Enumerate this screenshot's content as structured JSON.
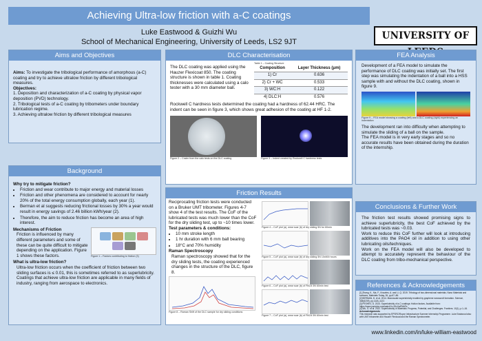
{
  "header": {
    "title": "Achieving Ultra-low friction with a-C coatings",
    "authors": "Luke Eastwood & Guizhi Wu",
    "affiliation": "School of Mechanical Engineering, University of Leeds, LS2 9JT",
    "logo_text": "UNIVERSITY OF LEEDS"
  },
  "aims": {
    "heading": "Aims and Objectives",
    "aims_label": "Aims:",
    "aims_text": "To investigate the tribological performance of amorphous (a-C) coating and try to achieve ultralow friction by different tribological measures.",
    "objectives_label": "Objectives:",
    "objectives": [
      "1. Deposition and characterization of a-C coating by physical vapor deposition (PVD) technology.",
      "2. Tribological tests of a-C coating by tribometers under boundary lubrication regime.",
      "3. Achieving ultralow friction by different tribological measures"
    ]
  },
  "background": {
    "heading": "Background",
    "why_heading": "Why try to mitigate friction?",
    "why_items": [
      "Friction and wear contribute to major energy and material losses",
      "Friction and other phenomena are considered to account for nearly 20% of the total energy consumption globally, each year (1).",
      "Berman et al suggests reducing frictional losses by 30% a year would result in energy savings of 2.46 billion kWh/year (2).",
      "Therefore, the aim to reduce friction has become an area of high interest."
    ],
    "mech_heading": "Mechanisms of Friction",
    "mech_text": "Friction is influenced by many different parameters and some of these can be quite difficult to mitigate depending on the application. Figure 1 shows these factors.",
    "fig1_caption": "Figure 1 – Factors contributing to friction (3)",
    "ultra_heading": "What is ultra-low friction?",
    "ultra_text1": "Ultra-low friction occurs when the coefficient of friction between two sliding surfaces is ≤ 0.01, this is sometimes referred to as superlubricity.",
    "ultra_text2": "Coatings that achieve ultra-low friction are applicable in many fields of industry, ranging from aerospace to electronics."
  },
  "dlc": {
    "heading": "DLC Characterisation",
    "text1": "The DLC coating was applied using the Hauzer Flexicoat 850. The coating structure is shown in table 1. Coating thicknesses were calculated using a calo tester with a 30 mm diameter ball.",
    "table_caption": "Table 1 – Coating Structure",
    "table_headers": [
      "Composition",
      "Layer Thickness (μm)"
    ],
    "table_rows": [
      [
        "1) Cr",
        "0.636"
      ],
      [
        "2) Cr + WC",
        "0.533"
      ],
      [
        "3) WC:H",
        "0.122"
      ],
      [
        "4) DLC:H",
        "0.576"
      ]
    ],
    "text2": "Rockwell C hardness tests determined the coating had a hardness of 62.44 HRC. The indent can be seen in figure 3, which shows great adhesion of the coating at HF 1-2.",
    "fig2_caption": "Figure 2 – Crater from the calo tests on the DLC coating",
    "fig3_caption": "Figure 3 – Indent created by Rockwell C hardness tests"
  },
  "fea": {
    "heading": "FEA Analysis",
    "text1": "Development of a FEA model to simulate the performance of DLC coating was initially set. The first step was simulating the indentation of a ball into a HSS sample with and without the DLC coating, shown in figure 9.",
    "fig9_caption": "Figure 9 – FEA model showing a coating (left) and a DLC coating (right) experiencing an indentation",
    "text2": "The development ran into difficulty when attempting to simulate the sliding of a ball on the sample.",
    "text3": "The FEA model is in very early stages and so no accurate results have been obtained during the duration of the internship."
  },
  "friction": {
    "heading": "Friction Results",
    "intro": "Reciprocating friction tests were conducted on a Bruker UMT tribometer. Figures 4-7 show 4 of the test results. The CoF of the lubricated tests was much lower than the CoF for the dry sliding test, up to ~10 times lower.",
    "params_heading": "Test parameters & conditions:",
    "params": [
      "10 mm stroke length",
      "1 hr duration with 6 mm ball bearing",
      "18°C and 70% humidity"
    ],
    "raman_heading": "Raman Spectroscopy",
    "raman_text": "Raman spectroscopy showed that for the dry sliding tests, the coating experienced changes in the structure of the DLC, figure 8.",
    "fig8_caption": "Figure 8 – Raman Shift of the DLC sample for dry sliding conditions",
    "fig_captions": [
      "Figure 4 – CoF plot (a), wear scar (b) of dry sliding 5N for 60min",
      "Figure 5 – CoF plot (a), wear scar (b) of dry sliding 5N 10x500 hours",
      "Figure 6 – CoF plot (a), wear scar (b) of PAO4 5N 60min test",
      "Figure 7 – CoF plot (a), wear scar (b) of PAO4 5N 60min test"
    ]
  },
  "conclusions": {
    "heading": "Conclusions & Further Work",
    "text1": "The friction test results showed promising signs to achieve superlubricity, the best CoF achieved by the lubricated tests was ~0.03.",
    "text2": "Work to reduce this CoF further will look at introducing additives into the PAO4 oil in addition to using other lubricating oils/techniques.",
    "text3": "Work on the FEA model will also be developed to attempt to accurately represent the behaviour of the DLC coating from tribo-mechanical perspective."
  },
  "references": {
    "heading": "References & Acknowledgements",
    "items": [
      "[1] Zhang, K., Ma, F., Knowles, A. and Li, Q. 2019. Tribology of two-dimensional materials. Nano Materials and surfaces, Materials Today, 26, pp.67–86.",
      "[2] BERMAN, D. et al. 2014. Macroscale superlubricity enabled by graphene nanoscroll formation. Science, 348(6239), pp.1118–1122.",
      "[3] PESHEV, D. 2023. Superlubricity of a-C coatings: friction factors. Available from: https://www.youtube.com/watch?v=9JxVwPMrIFs",
      "[4] Wu, G. et al. 2022. Superlubricity of Materials: Progress, Potential, and Challenges. Frontiers. 10(1), p.1–16."
    ],
    "ack_heading": "Acknowledgements",
    "ack_text": "This research was supported by EPSRC/Royce Infrastructure Summer Internship Programme. Luke Eastwood also with UMT tribometer and Hauzer Flexicoat and the Raman Spectrometer."
  },
  "footer": {
    "link": "www.linkedin.com/in/luke-william-eastwood"
  }
}
